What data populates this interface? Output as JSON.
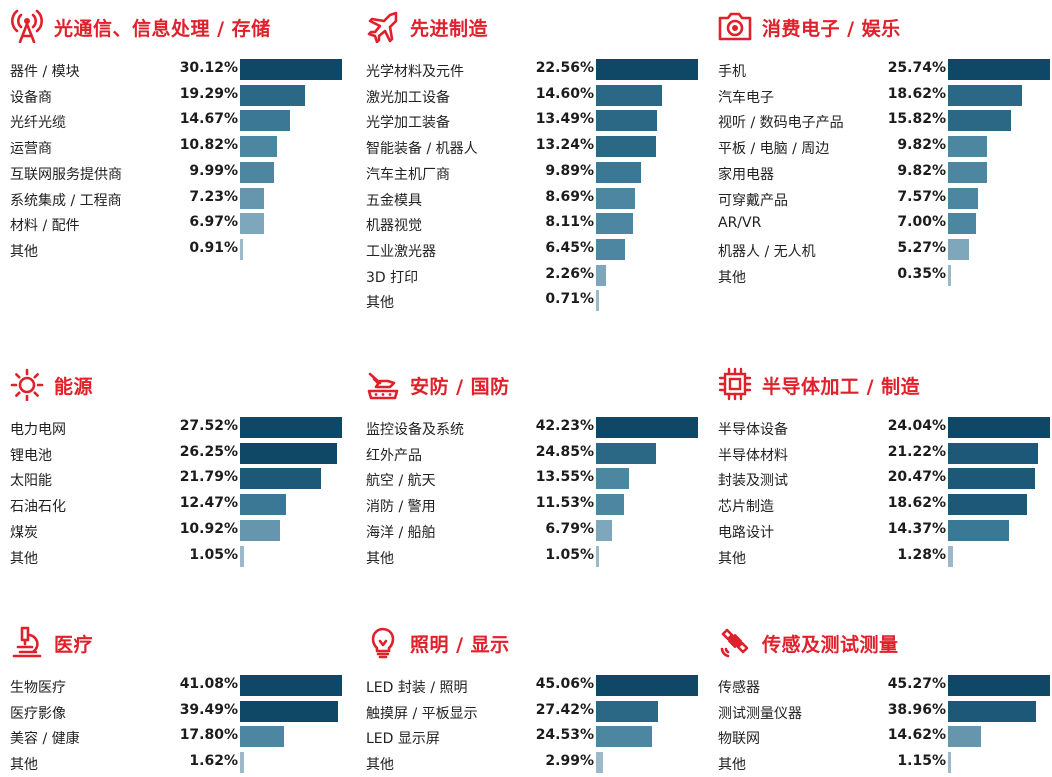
{
  "colors": {
    "title": "#e0202b",
    "icon": "#e0202b",
    "text": "#222222",
    "bar_shades": [
      "#0f4866",
      "#1d5878",
      "#2a6886",
      "#3a7895",
      "#4d86a1",
      "#6696ad",
      "#7fa7bc",
      "#9db9c9",
      "#b8ccd8",
      "#cbd9e2"
    ]
  },
  "chart_data": [
    {
      "type": "bar",
      "orientation": "horizontal",
      "title": "光通信、信息处理 / 存储",
      "icon": "antenna-tower-icon",
      "categories": [
        "器件 / 模块",
        "设备商",
        "光纤光缆",
        "运营商",
        "互联网服务提供商",
        "系统集成 / 工程商",
        "材料 / 配件",
        "其他"
      ],
      "values": [
        30.12,
        19.29,
        14.67,
        10.82,
        9.99,
        7.23,
        6.97,
        0.91
      ],
      "labels": [
        "30.12%",
        "19.29%",
        "14.67%",
        "10.82%",
        "9.99%",
        "7.23%",
        "6.97%",
        "0.91%"
      ]
    },
    {
      "type": "bar",
      "orientation": "horizontal",
      "title": "先进制造",
      "icon": "airplane-icon",
      "categories": [
        "光学材料及元件",
        "激光加工设备",
        "光学加工装备",
        "智能装备 / 机器人",
        "汽车主机厂商",
        "五金模具",
        "机器视觉",
        "工业激光器",
        "3D 打印",
        "其他"
      ],
      "values": [
        22.56,
        14.6,
        13.49,
        13.24,
        9.89,
        8.69,
        8.11,
        6.45,
        2.26,
        0.71
      ],
      "labels": [
        "22.56%",
        "14.60%",
        "13.49%",
        "13.24%",
        "9.89%",
        "8.69%",
        "8.11%",
        "6.45%",
        "2.26%",
        "0.71%"
      ]
    },
    {
      "type": "bar",
      "orientation": "horizontal",
      "title": "消费电子 / 娱乐",
      "icon": "camera-icon",
      "categories": [
        "手机",
        "汽车电子",
        "视听 / 数码电子产品",
        "平板 / 电脑 / 周边",
        "家用电器",
        "可穿戴产品",
        "AR/VR",
        "机器人 / 无人机",
        "其他"
      ],
      "values": [
        25.74,
        18.62,
        15.82,
        9.82,
        9.82,
        7.57,
        7.0,
        5.27,
        0.35
      ],
      "labels": [
        "25.74%",
        "18.62%",
        "15.82%",
        "9.82%",
        "9.82%",
        "7.57%",
        "7.00%",
        "5.27%",
        "0.35%"
      ]
    },
    {
      "type": "bar",
      "orientation": "horizontal",
      "title": "能源",
      "icon": "sun-icon",
      "categories": [
        "电力电网",
        "锂电池",
        "太阳能",
        "石油石化",
        "煤炭",
        "其他"
      ],
      "values": [
        27.52,
        26.25,
        21.79,
        12.47,
        10.92,
        1.05
      ],
      "labels": [
        "27.52%",
        "26.25%",
        "21.79%",
        "12.47%",
        "10.92%",
        "1.05%"
      ]
    },
    {
      "type": "bar",
      "orientation": "horizontal",
      "title": "安防 / 国防",
      "icon": "tank-icon",
      "categories": [
        "监控设备及系统",
        "红外产品",
        "航空 / 航天",
        "消防 / 警用",
        "海洋 / 船舶",
        "其他"
      ],
      "values": [
        42.23,
        24.85,
        13.55,
        11.53,
        6.79,
        1.05
      ],
      "labels": [
        "42.23%",
        "24.85%",
        "13.55%",
        "11.53%",
        "6.79%",
        "1.05%"
      ]
    },
    {
      "type": "bar",
      "orientation": "horizontal",
      "title": "半导体加工 / 制造",
      "icon": "chip-icon",
      "categories": [
        "半导体设备",
        "半导体材料",
        "封装及测试",
        "芯片制造",
        "电路设计",
        "其他"
      ],
      "values": [
        24.04,
        21.22,
        20.47,
        18.62,
        14.37,
        1.28
      ],
      "labels": [
        "24.04%",
        "21.22%",
        "20.47%",
        "18.62%",
        "14.37%",
        "1.28%"
      ]
    },
    {
      "type": "bar",
      "orientation": "horizontal",
      "title": "医疗",
      "icon": "microscope-icon",
      "categories": [
        "生物医疗",
        "医疗影像",
        "美容 / 健康",
        "其他"
      ],
      "values": [
        41.08,
        39.49,
        17.8,
        1.62
      ],
      "labels": [
        "41.08%",
        "39.49%",
        "17.80%",
        "1.62%"
      ]
    },
    {
      "type": "bar",
      "orientation": "horizontal",
      "title": "照明 / 显示",
      "icon": "lightbulb-icon",
      "categories": [
        "LED 封装 / 照明",
        "触摸屏 / 平板显示",
        "LED 显示屏",
        "其他"
      ],
      "values": [
        45.06,
        27.42,
        24.53,
        2.99
      ],
      "labels": [
        "45.06%",
        "27.42%",
        "24.53%",
        "2.99%"
      ]
    },
    {
      "type": "bar",
      "orientation": "horizontal",
      "title": "传感及测试测量",
      "icon": "satellite-icon",
      "categories": [
        "传感器",
        "测试测量仪器",
        "物联网",
        "其他"
      ],
      "values": [
        45.27,
        38.96,
        14.62,
        1.15
      ],
      "labels": [
        "45.27%",
        "38.96%",
        "14.62%",
        "1.15%"
      ]
    }
  ]
}
